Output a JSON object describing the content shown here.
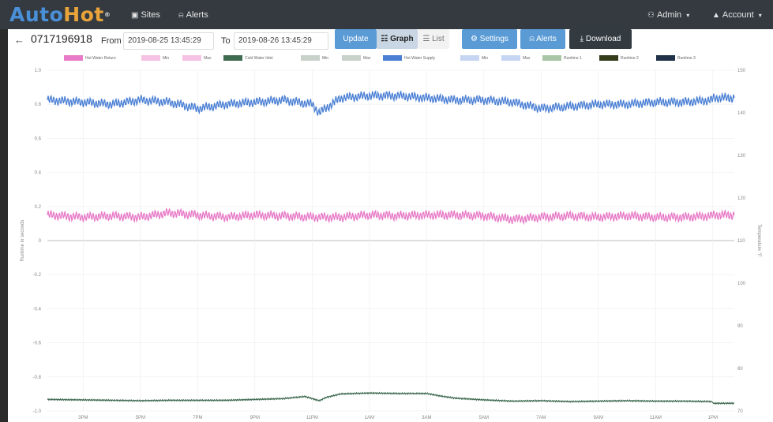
{
  "navbar": {
    "logo_left": "Auto",
    "logo_right": "Hot",
    "logo_mark": "®",
    "sites": "Sites",
    "alerts": "Alerts",
    "admin": "Admin",
    "account": "Account",
    "sites_icon": "building-icon",
    "alerts_icon": "bell-icon",
    "admin_icon": "users-icon",
    "account_icon": "user-icon"
  },
  "toolbar": {
    "back": "←",
    "device_id": "0717196918",
    "from_label": "From",
    "from_value": "2019-08-25 13:45:29",
    "to_label": "To",
    "to_value": "2019-08-26 13:45:29",
    "update": "Update",
    "graph": "Graph",
    "list": "List",
    "settings": "Settings",
    "alerts": "Alerts",
    "download": "Download"
  },
  "legend": [
    {
      "label": "Hot Water Return",
      "color": "#e77bc7"
    },
    {
      "label": "Min",
      "color": "#f5c2e3"
    },
    {
      "label": "Max",
      "color": "#f5c2e3"
    },
    {
      "label": "Cold Water Inlet",
      "color": "#3f6b50"
    },
    {
      "label": "Min",
      "color": "#c9d1cb"
    },
    {
      "label": "Max",
      "color": "#c9d1cb"
    },
    {
      "label": "Hot Water Supply",
      "color": "#4a7fd4"
    },
    {
      "label": "Min",
      "color": "#c6d6f2"
    },
    {
      "label": "Max",
      "color": "#c6d6f2"
    },
    {
      "label": "Runtime 1",
      "color": "#a9c6a6"
    },
    {
      "label": "Runtime 2",
      "color": "#353c1a"
    },
    {
      "label": "Runtime 3",
      "color": "#1f3247"
    }
  ],
  "chart_data": {
    "type": "line",
    "ylabel": "Runtime in seconds",
    "y2label": "Temperature °F",
    "ylim": [
      -1.0,
      1.0
    ],
    "y2lim": [
      70,
      150
    ],
    "y_ticks": [
      "1.0",
      "0.8",
      "0.6",
      "0.4",
      "0.2",
      "0",
      "-0.2",
      "-0.4",
      "-0.6",
      "-0.8",
      "-1.0"
    ],
    "y2_ticks": [
      "150",
      "140",
      "130",
      "120",
      "110",
      "100",
      "90",
      "80",
      "70"
    ],
    "x_ticks": [
      "3PM",
      "5PM",
      "7PM",
      "9PM",
      "11PM",
      "1AM",
      "3AM",
      "5AM",
      "7AM",
      "9AM",
      "11AM",
      "1PM"
    ],
    "grid": true,
    "legend_position": "top",
    "series": [
      {
        "name": "Hot Water Supply",
        "axis": "right",
        "color": "#4a7fd4",
        "oscillating": true,
        "x": [
          "13:45",
          "15:00",
          "16:00",
          "17:00",
          "18:00",
          "19:00",
          "20:00",
          "21:00",
          "22:00",
          "23:00",
          "23:15",
          "00:00",
          "01:00",
          "02:00",
          "03:00",
          "04:00",
          "05:00",
          "06:00",
          "07:00",
          "08:00",
          "09:00",
          "10:00",
          "11:00",
          "12:00",
          "13:00",
          "13:45"
        ],
        "values": [
          143,
          142.5,
          142,
          143,
          142.5,
          141,
          142,
          142.5,
          143,
          142,
          140,
          143.5,
          144,
          144,
          143.5,
          143,
          143,
          142.5,
          141,
          141.5,
          142,
          142,
          142.5,
          142.5,
          143,
          143.5
        ]
      },
      {
        "name": "Hot Water Return",
        "axis": "right",
        "color": "#e77bc7",
        "oscillating": true,
        "x": [
          "13:45",
          "15:00",
          "16:00",
          "17:00",
          "18:00",
          "19:00",
          "20:00",
          "21:00",
          "22:00",
          "23:00",
          "00:00",
          "01:00",
          "02:00",
          "03:00",
          "04:00",
          "05:00",
          "06:00",
          "07:00",
          "08:00",
          "09:00",
          "10:00",
          "11:00",
          "12:00",
          "13:00",
          "13:45"
        ],
        "values": [
          116,
          115.5,
          115.8,
          115.5,
          116.5,
          116,
          115.5,
          116,
          115.8,
          115.5,
          115.5,
          116,
          115.8,
          116,
          116,
          115.8,
          115,
          115.5,
          115.8,
          115.5,
          115.8,
          115.5,
          115.5,
          115.8,
          116
        ]
      },
      {
        "name": "Cold Water Inlet",
        "axis": "right",
        "color": "#3f6b50",
        "oscillating": false,
        "x": [
          "13:45",
          "15:00",
          "16:00",
          "17:00",
          "18:00",
          "19:00",
          "20:00",
          "21:00",
          "22:00",
          "22:45",
          "23:15",
          "23:30",
          "00:00",
          "01:00",
          "02:00",
          "03:00",
          "03:30",
          "04:00",
          "05:00",
          "06:00",
          "07:00",
          "08:00",
          "09:00",
          "10:00",
          "11:00",
          "12:00",
          "13:00",
          "13:45"
        ],
        "values": [
          72.7,
          72.6,
          72.5,
          72.4,
          72.5,
          72.5,
          72.5,
          72.7,
          72.9,
          73.4,
          72.4,
          73.2,
          74,
          74.2,
          74.1,
          74.1,
          73.5,
          73,
          72.6,
          72.3,
          72.4,
          72.2,
          72.3,
          72.4,
          72.3,
          72.3,
          72.2,
          71.8
        ]
      }
    ]
  }
}
